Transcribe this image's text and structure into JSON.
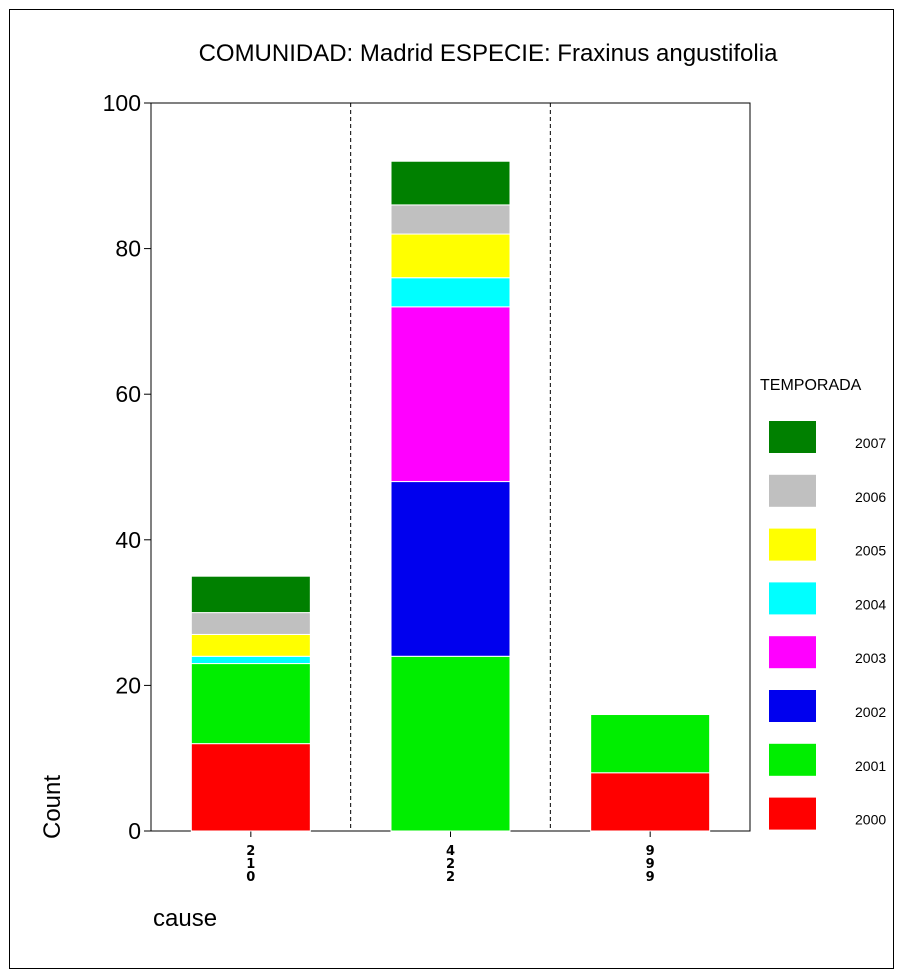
{
  "chart_data": {
    "type": "bar",
    "stacked": true,
    "title": "COMUNIDAD: Madrid  ESPECIE: Fraxinus angustifolia",
    "xlabel": "cause",
    "ylabel": "Count",
    "ylim": [
      0,
      100
    ],
    "yticks": [
      0,
      20,
      40,
      60,
      80,
      100
    ],
    "grid": false,
    "category_separators": "dashed",
    "categories": [
      "210",
      "422",
      "999"
    ],
    "series": [
      {
        "name": "2000",
        "color": "#ff0000",
        "values": [
          12,
          0,
          8
        ]
      },
      {
        "name": "2001",
        "color": "#00ee00",
        "values": [
          11,
          24,
          8
        ]
      },
      {
        "name": "2002",
        "color": "#0000ee",
        "values": [
          0,
          24,
          0
        ]
      },
      {
        "name": "2003",
        "color": "#ff00ff",
        "values": [
          0,
          24,
          0
        ]
      },
      {
        "name": "2004",
        "color": "#00ffff",
        "values": [
          1,
          4,
          0
        ]
      },
      {
        "name": "2005",
        "color": "#ffff00",
        "values": [
          3,
          6,
          0
        ]
      },
      {
        "name": "2006",
        "color": "#c0c0c0",
        "values": [
          3,
          4,
          0
        ]
      },
      {
        "name": "2007",
        "color": "#008000",
        "values": [
          5,
          6,
          0
        ]
      }
    ],
    "legend": {
      "title": "TEMPORADA",
      "placement": "right",
      "order": "reversed"
    }
  }
}
